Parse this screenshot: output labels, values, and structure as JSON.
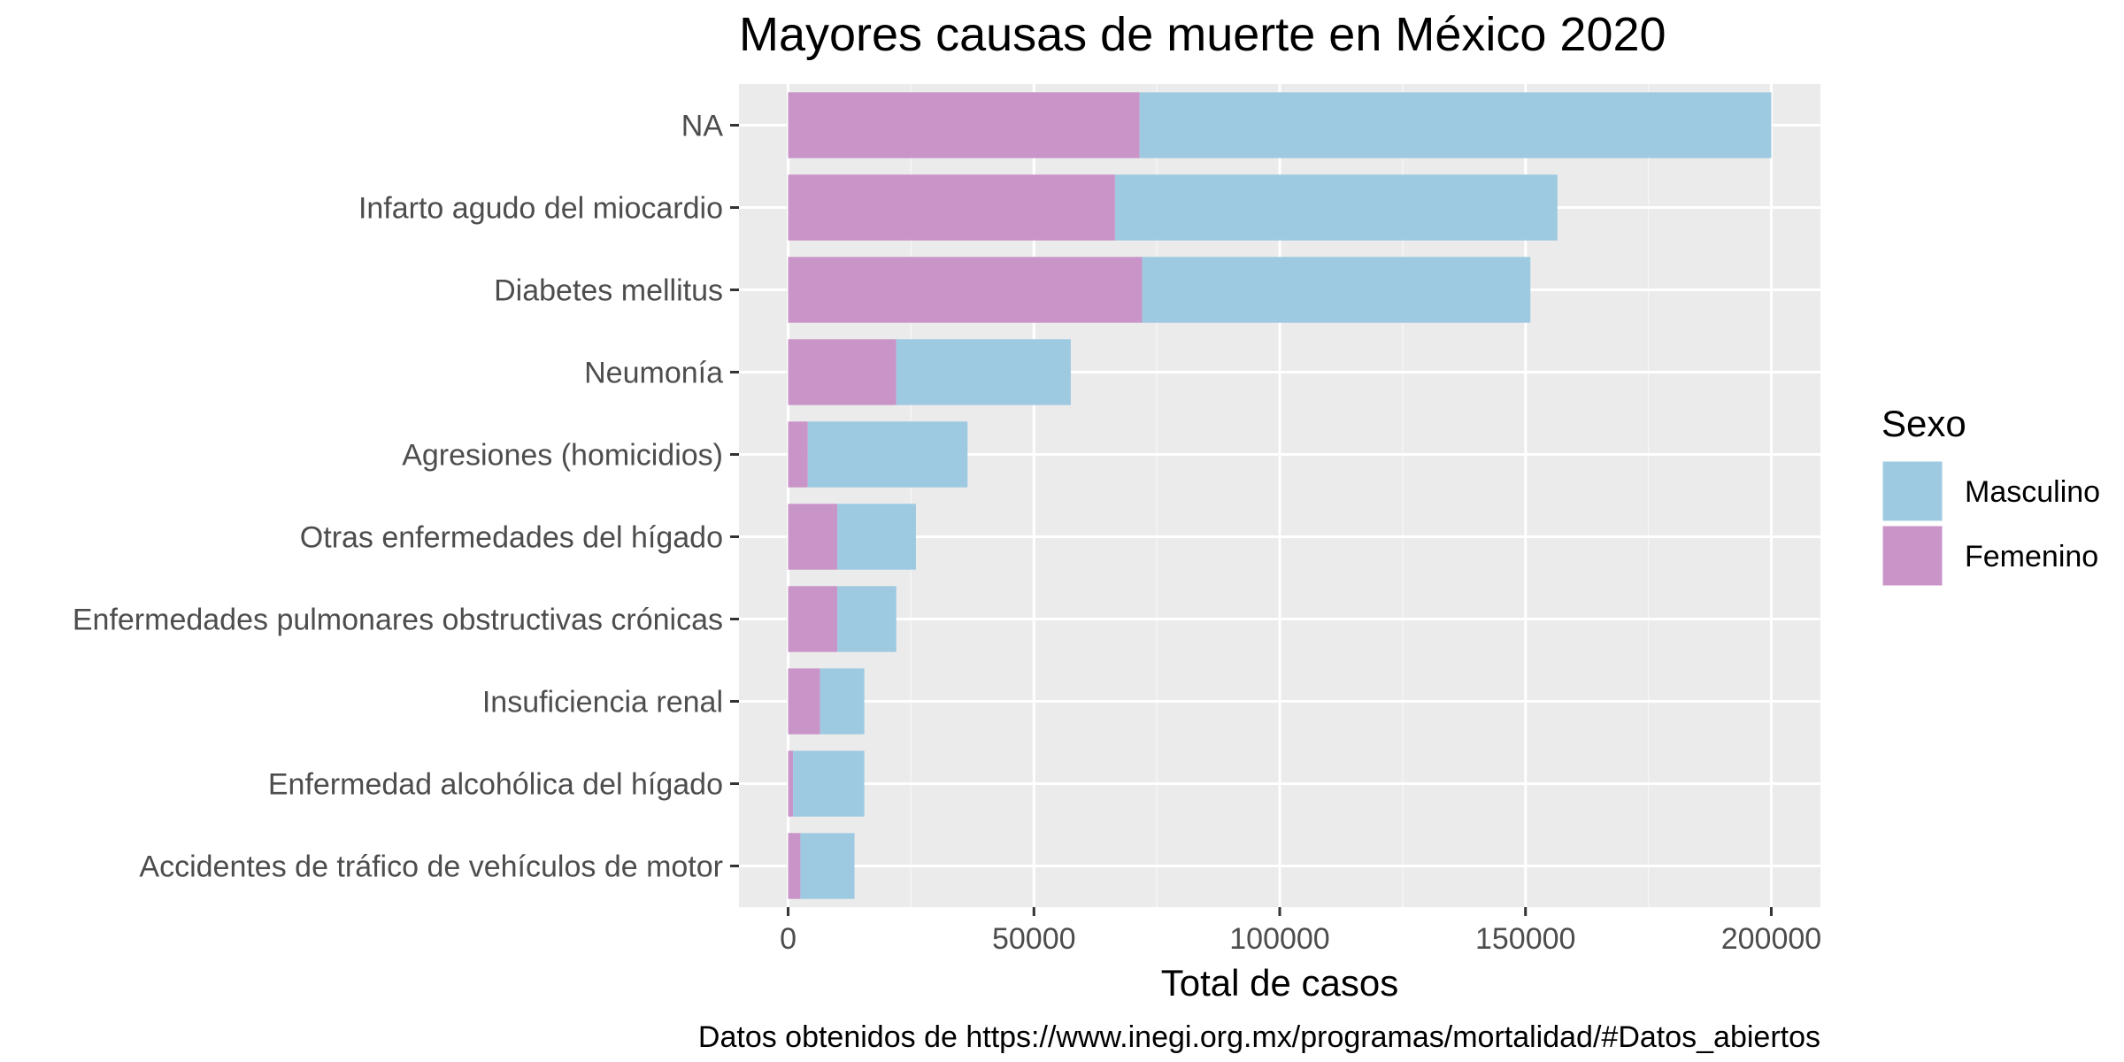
{
  "chart_data": {
    "type": "bar",
    "orientation": "horizontal",
    "stacked": true,
    "title": "Mayores causas de muerte en México 2020",
    "xlabel": "Total de casos",
    "ylabel": "",
    "caption": "Datos obtenidos de https://www.inegi.org.mx/programas/mortalidad/#Datos_abiertos",
    "xlim": [
      -10000,
      210000
    ],
    "xticks": [
      0,
      50000,
      100000,
      150000,
      200000
    ],
    "xtick_labels": [
      "0",
      "50000",
      "100000",
      "150000",
      "200000"
    ],
    "grid": true,
    "legend": {
      "title": "Sexo",
      "position": "right"
    },
    "categories": [
      "NA",
      "Infarto agudo del miocardio",
      "Diabetes mellitus",
      "Neumonía",
      "Agresiones (homicidios)",
      "Otras enfermedades del hígado",
      "Enfermedades pulmonares obstructivas crónicas",
      "Insuficiencia renal",
      "Enfermedad alcohólica del hígado",
      "Accidentes de tráfico de vehículos de motor"
    ],
    "series": [
      {
        "name": "Femenino",
        "color": "#c994c7",
        "values": [
          71500,
          66500,
          72000,
          22000,
          4000,
          10000,
          10000,
          6500,
          1000,
          2500
        ]
      },
      {
        "name": "Masculino",
        "color": "#9ecae1",
        "values": [
          128500,
          90000,
          79000,
          35500,
          32500,
          16000,
          12000,
          9000,
          14500,
          11000
        ]
      }
    ],
    "legend_order": [
      "Masculino",
      "Femenino"
    ],
    "colors": {
      "panel": "#ebebeb",
      "grid_major": "#ffffff",
      "grid_minor": "#f5f5f5",
      "tick": "#333333"
    }
  }
}
